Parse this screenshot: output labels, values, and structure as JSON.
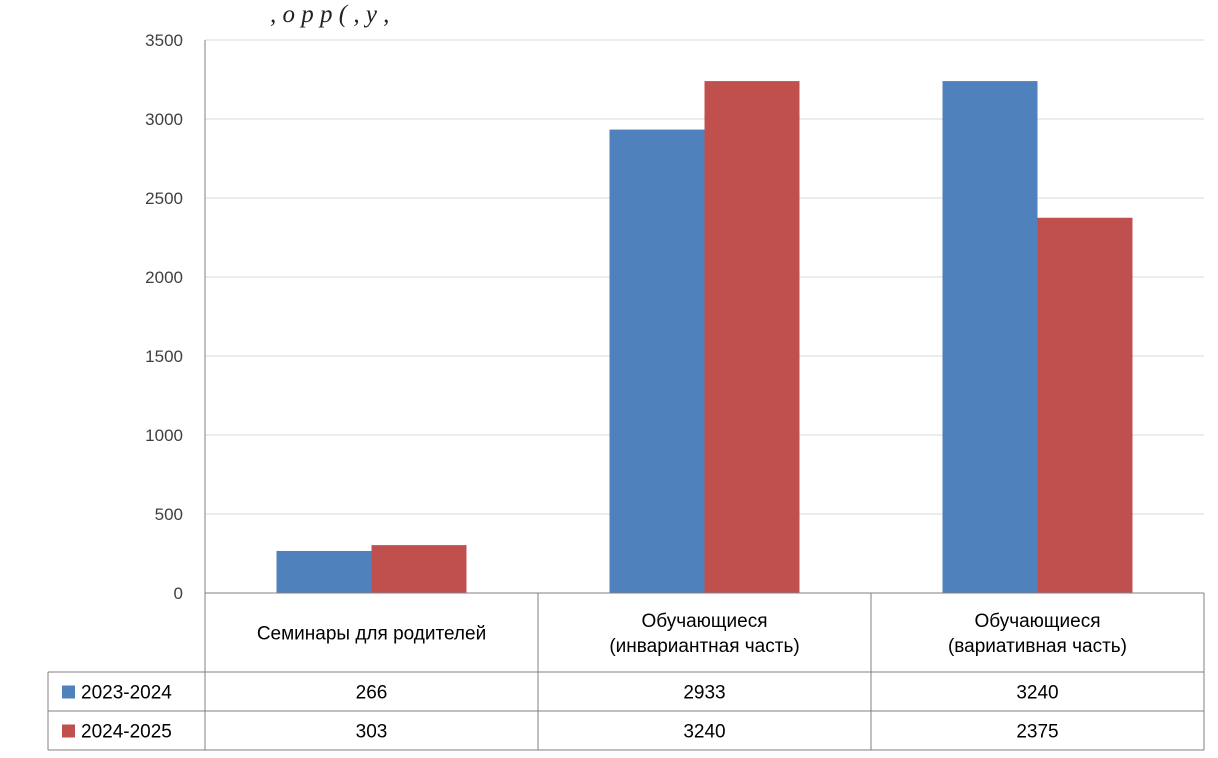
{
  "page": {
    "caption": ", о                                 р       р                       (                     ,    у       ,"
  },
  "chart_data": {
    "type": "bar",
    "categories": [
      [
        "Семинары для родителей"
      ],
      [
        "Обучающиеся",
        "(инвариантная часть)"
      ],
      [
        "Обучающиеся",
        "(вариативная часть)"
      ]
    ],
    "series": [
      {
        "name": "2023-2024",
        "color": "#4F81BD",
        "values": [
          266,
          2933,
          3240
        ]
      },
      {
        "name": "2024-2025",
        "color": "#C0504D",
        "values": [
          303,
          3240,
          2375
        ]
      }
    ],
    "ylim": [
      0,
      3500
    ],
    "yticks": [
      0,
      500,
      1000,
      1500,
      2000,
      2500,
      3000,
      3500
    ],
    "grid": true,
    "data_table": true,
    "gridline_color": "#D9D9D9",
    "axis_color": "#808080"
  }
}
